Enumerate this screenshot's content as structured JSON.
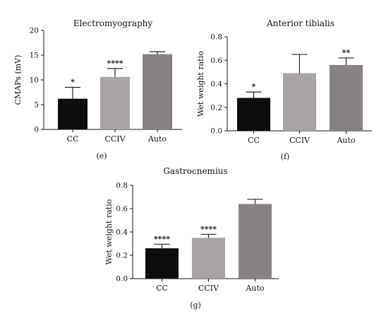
{
  "chart_data": [
    {
      "type": "bar",
      "title": "Electromyography",
      "panel_label": "(e)",
      "ylabel": "CMAPs (mV)",
      "xlabel": "",
      "categories": [
        "CC",
        "CCIV",
        "Auto"
      ],
      "values": [
        6.2,
        10.6,
        15.2
      ],
      "errors": [
        2.3,
        1.7,
        0.5
      ],
      "significance": [
        "*",
        "****",
        ""
      ],
      "ylim": [
        0,
        20
      ],
      "yticks": [
        "0",
        "5",
        "10",
        "15",
        "20"
      ],
      "colors": [
        "#0d0d0d",
        "#a8a4a6",
        "#878281"
      ]
    },
    {
      "type": "bar",
      "title": "Anterior tibialis",
      "panel_label": "(f)",
      "ylabel": "Wet weight ratio",
      "xlabel": "",
      "categories": [
        "CC",
        "CCIV",
        "Auto"
      ],
      "values": [
        0.28,
        0.49,
        0.56
      ],
      "errors": [
        0.05,
        0.16,
        0.06
      ],
      "significance": [
        "*",
        "",
        "**"
      ],
      "ylim": [
        0,
        0.8
      ],
      "yticks": [
        "0.0",
        "0.2",
        "0.4",
        "0.6",
        "0.8"
      ],
      "colors": [
        "#0d0d0d",
        "#a8a4a6",
        "#878281"
      ]
    },
    {
      "type": "bar",
      "title": "Gastrocnemius",
      "panel_label": "(g)",
      "ylabel": "Wet weight ratio",
      "xlabel": "",
      "categories": [
        "CC",
        "CCIV",
        "Auto"
      ],
      "values": [
        0.26,
        0.35,
        0.64
      ],
      "errors": [
        0.035,
        0.03,
        0.04
      ],
      "significance": [
        "****",
        "****",
        ""
      ],
      "ylim": [
        0,
        0.8
      ],
      "yticks": [
        "0.0",
        "0.2",
        "0.4",
        "0.6",
        "0.8"
      ],
      "colors": [
        "#0d0d0d",
        "#a8a4a6",
        "#878281"
      ]
    }
  ]
}
